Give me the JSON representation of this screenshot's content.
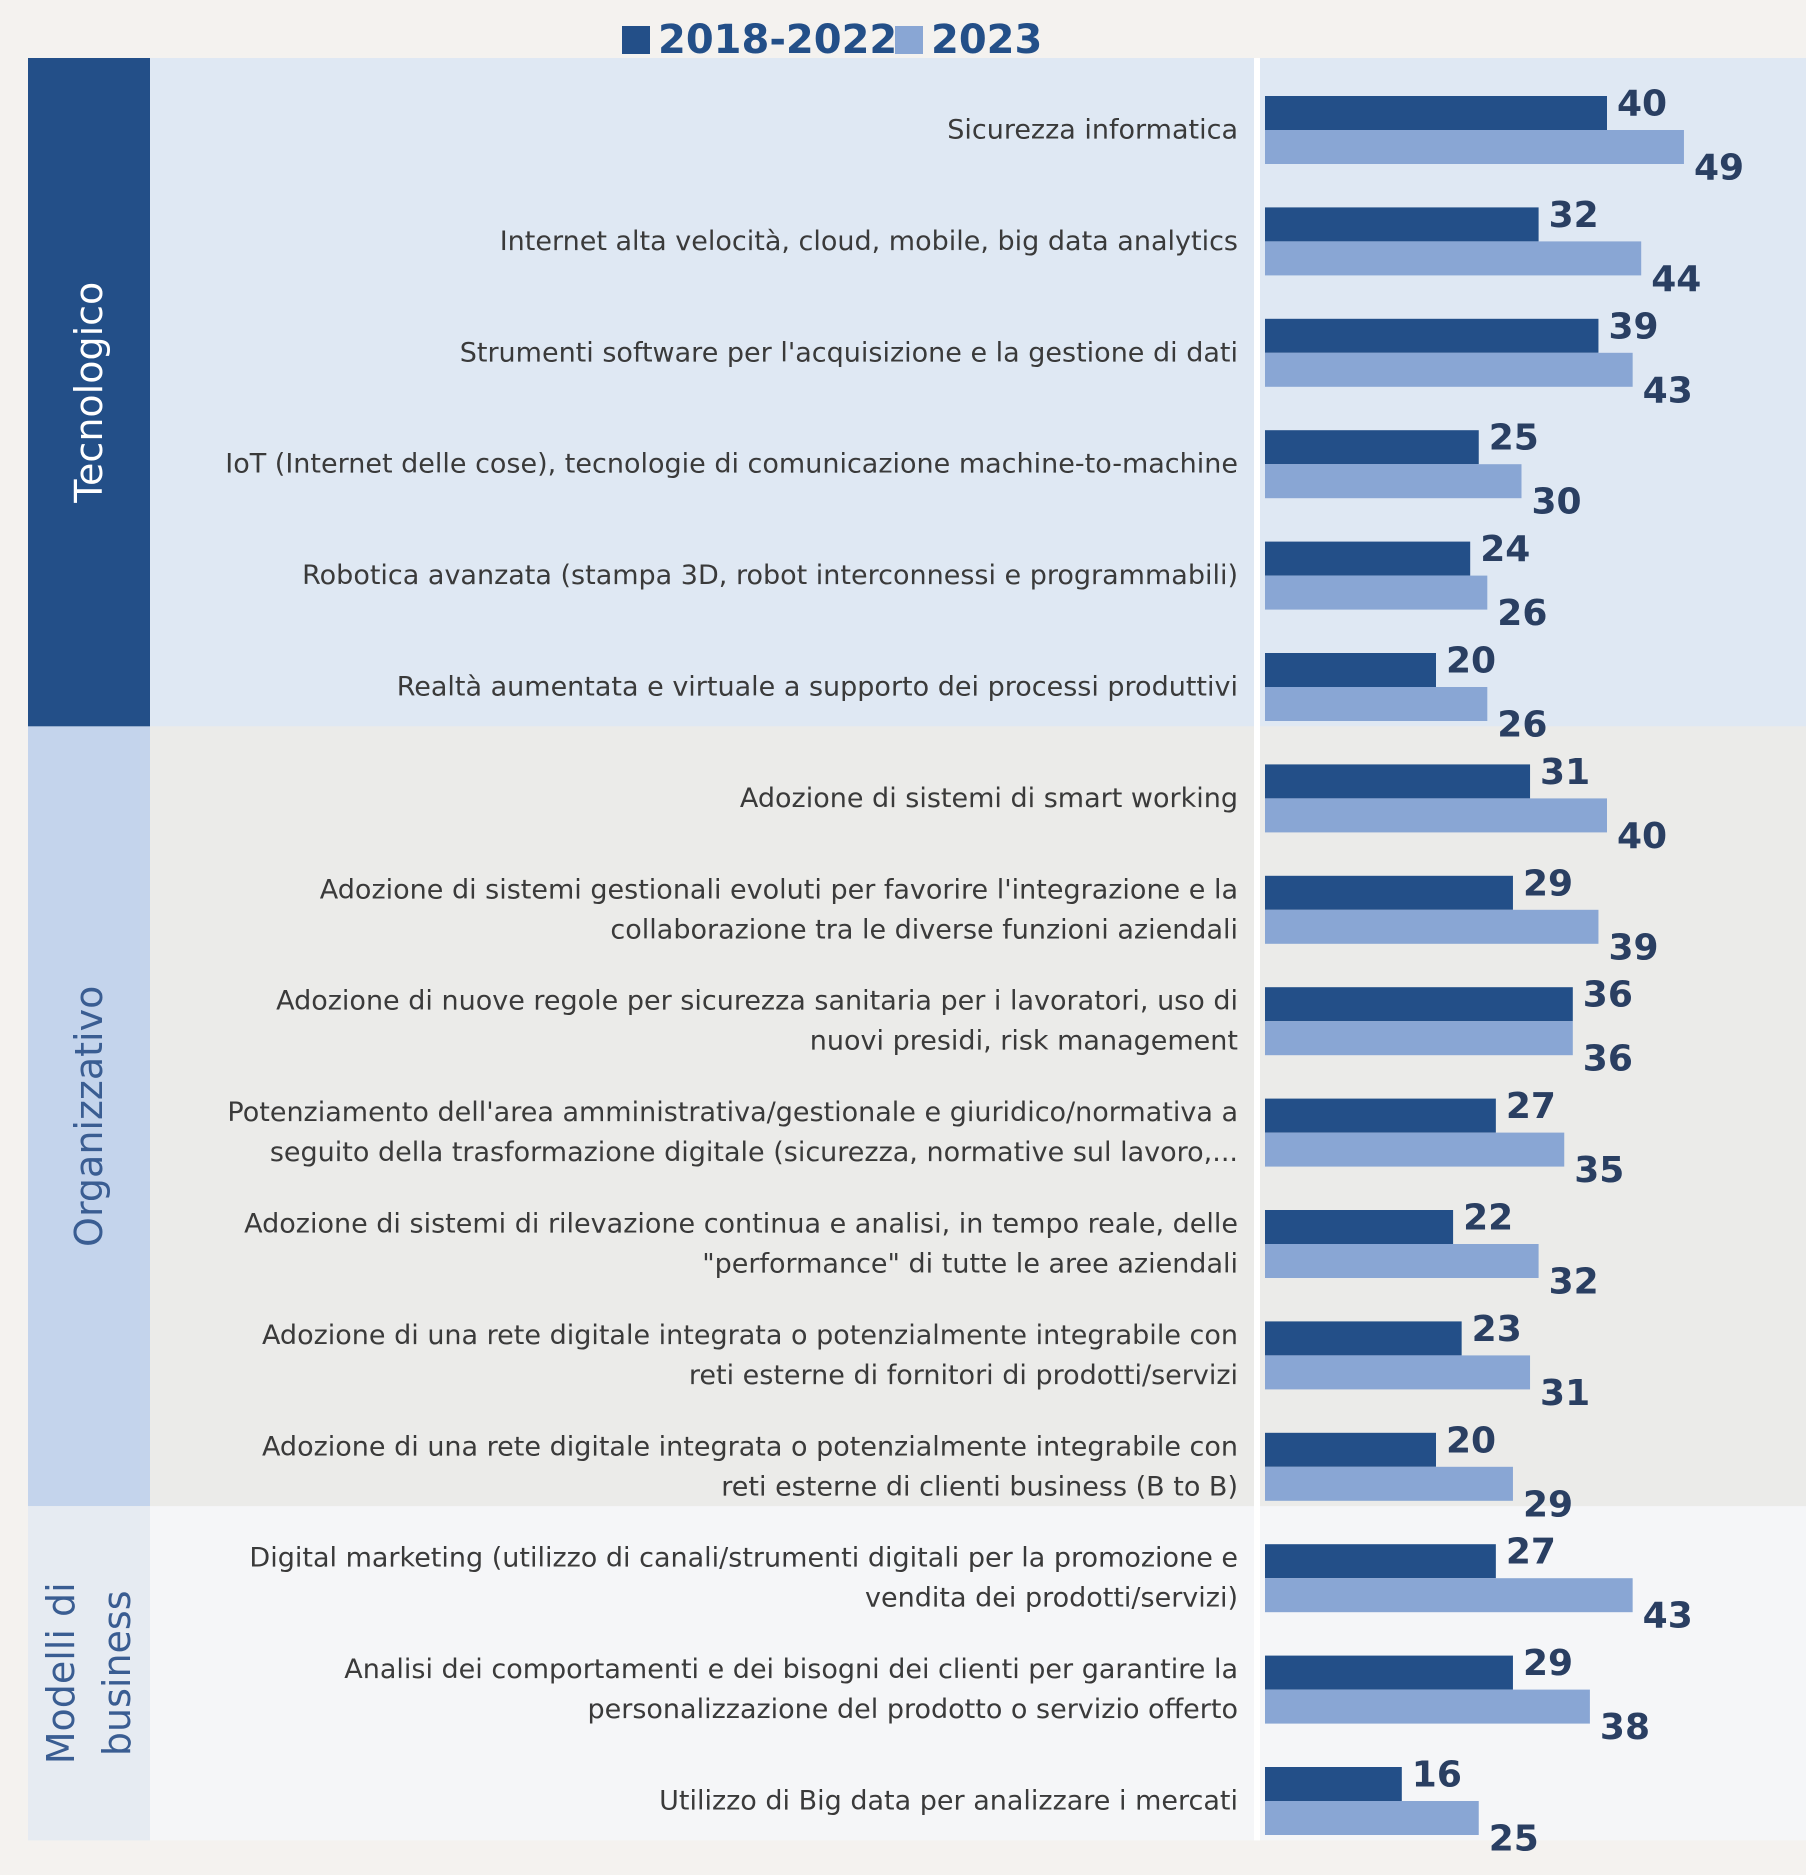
{
  "chart_data": {
    "type": "bar",
    "orientation": "horizontal",
    "title": "",
    "xlabel": "",
    "ylabel": "",
    "xlim": [
      0,
      53
    ],
    "grid": false,
    "legend": {
      "position": "top"
    },
    "series": [
      {
        "name": "2018-2022",
        "color": "#234f88",
        "values": [
          40,
          32,
          39,
          25,
          24,
          20,
          31,
          29,
          36,
          27,
          22,
          23,
          20,
          27,
          29,
          16
        ]
      },
      {
        "name": "2023",
        "color": "#89a6d4",
        "values": [
          49,
          44,
          43,
          30,
          26,
          26,
          40,
          39,
          36,
          35,
          32,
          31,
          29,
          43,
          38,
          25
        ]
      }
    ],
    "categories": [
      [
        "Sicurezza informatica"
      ],
      [
        "Internet alta velocità, cloud, mobile, big data analytics"
      ],
      [
        "Strumenti software  per l'acquisizione e la gestione di dati"
      ],
      [
        "IoT (Internet delle cose), tecnologie di comunicazione machine-to-machine"
      ],
      [
        "Robotica avanzata (stampa 3D, robot interconnessi e programmabili)"
      ],
      [
        "Realtà aumentata e virtuale a supporto dei processi produttivi"
      ],
      [
        "Adozione di sistemi di smart working"
      ],
      [
        "Adozione di sistemi gestionali evoluti per favorire l'integrazione e la",
        "collaborazione tra le diverse funzioni aziendali"
      ],
      [
        "Adozione di nuove regole per sicurezza sanitaria per i lavoratori, uso di",
        "nuovi presidi, risk management"
      ],
      [
        "Potenziamento dell'area amministrativa/gestionale e giuridico/normativa a",
        "seguito della trasformazione digitale (sicurezza, normative sul lavoro,..."
      ],
      [
        "Adozione di sistemi di rilevazione continua e analisi, in tempo reale, delle",
        "\"performance\" di tutte le aree aziendali"
      ],
      [
        "Adozione di una rete digitale integrata o potenzialmente integrabile con",
        "reti esterne di fornitori di prodotti/servizi"
      ],
      [
        "Adozione di una rete digitale integrata o potenzialmente integrabile con",
        "reti esterne di clienti business (B to B)"
      ],
      [
        "Digital marketing (utilizzo di canali/strumenti digitali per la promozione e",
        "vendita dei prodotti/servizi)"
      ],
      [
        "Analisi dei comportamenti e dei bisogni dei clienti per garantire la",
        "personalizzazione del prodotto o servizio offerto"
      ],
      [
        "Utilizzo di Big data per analizzare i mercati"
      ]
    ],
    "groups": [
      {
        "label": [
          "Tecnologico"
        ],
        "start": 0,
        "end": 5,
        "header_color": "#234f88",
        "header_text_color": "#ffffff",
        "panel_color": "#dfe8f3"
      },
      {
        "label": [
          "Organizzativo"
        ],
        "start": 6,
        "end": 12,
        "header_color": "#c4d4ec",
        "header_text_color": "#3a5d92",
        "panel_color": "#ebebe9"
      },
      {
        "label": [
          "Modelli di",
          "business"
        ],
        "start": 13,
        "end": 15,
        "header_color": "#e6ebf2",
        "header_text_color": "#3a5d92",
        "panel_color": "#f5f6f8"
      }
    ]
  }
}
